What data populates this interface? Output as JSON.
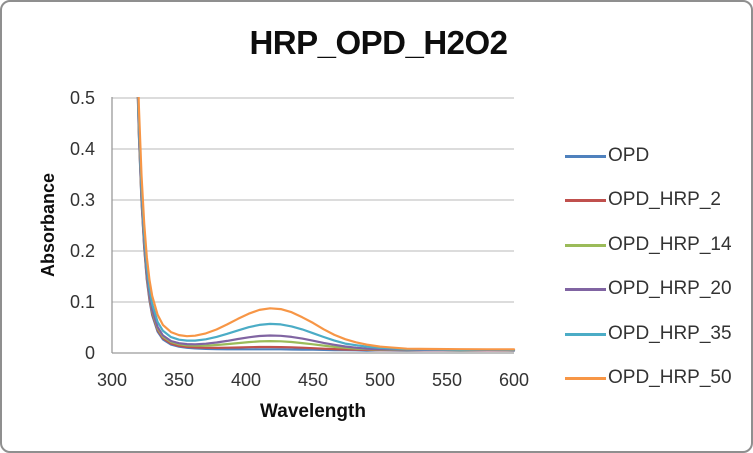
{
  "chart_data": {
    "type": "line",
    "title": "HRP_OPD_H2O2",
    "xlabel": "Wavelength",
    "ylabel": "Absorbance",
    "xlim": [
      300,
      600
    ],
    "ylim": [
      0,
      0.5
    ],
    "xticks": [
      "300",
      "350",
      "400",
      "450",
      "500",
      "550",
      "600"
    ],
    "yticks": [
      "0",
      "0.1",
      "0.2",
      "0.3",
      "0.4",
      "0.5"
    ],
    "grid": true,
    "legend_position": "right",
    "grid_color": "#c6c6c6",
    "axis_color": "#9a9a9a",
    "x": [
      316,
      318,
      320,
      322,
      324,
      326,
      328,
      330,
      334,
      338,
      344,
      350,
      356,
      362,
      370,
      378,
      386,
      394,
      402,
      410,
      418,
      426,
      434,
      442,
      450,
      458,
      466,
      474,
      482,
      490,
      500,
      520,
      540,
      560,
      580,
      600
    ],
    "series": [
      {
        "name": "OPD",
        "color": "#4F81BD",
        "values": [
          0.928,
          0.631,
          0.431,
          0.297,
          0.206,
          0.144,
          0.103,
          0.074,
          0.042,
          0.0266,
          0.0164,
          0.0123,
          0.0102,
          0.009,
          0.008,
          0.0075,
          0.0073,
          0.0072,
          0.0073,
          0.0073,
          0.0073,
          0.0072,
          0.0069,
          0.0067,
          0.0064,
          0.006,
          0.0057,
          0.0055,
          0.0053,
          0.0048,
          0.0053,
          0.0046,
          0.0052,
          0.0047,
          0.0051,
          0.0048
        ]
      },
      {
        "name": "OPD_HRP_2",
        "color": "#C0504D",
        "values": [
          0.933,
          0.636,
          0.435,
          0.301,
          0.209,
          0.147,
          0.106,
          0.077,
          0.045,
          0.029,
          0.0184,
          0.014,
          0.0119,
          0.0109,
          0.0101,
          0.01,
          0.0103,
          0.0108,
          0.0113,
          0.0117,
          0.0118,
          0.0116,
          0.0112,
          0.0103,
          0.0095,
          0.0085,
          0.0076,
          0.0069,
          0.0064,
          0.006,
          0.0055,
          0.0057,
          0.0052,
          0.0056,
          0.0051,
          0.0054
        ]
      },
      {
        "name": "OPD_HRP_14",
        "color": "#9BBB59",
        "values": [
          0.94,
          0.642,
          0.441,
          0.306,
          0.215,
          0.152,
          0.11,
          0.081,
          0.048,
          0.032,
          0.0214,
          0.017,
          0.015,
          0.0143,
          0.0144,
          0.0156,
          0.0174,
          0.0194,
          0.0213,
          0.0228,
          0.0234,
          0.023,
          0.0216,
          0.0195,
          0.0171,
          0.0145,
          0.012,
          0.0101,
          0.0086,
          0.0076,
          0.0067,
          0.0058,
          0.0062,
          0.0057,
          0.0061,
          0.0058
        ]
      },
      {
        "name": "OPD_HRP_20",
        "color": "#8064A2",
        "values": [
          0.946,
          0.647,
          0.446,
          0.31,
          0.219,
          0.156,
          0.113,
          0.084,
          0.051,
          0.0345,
          0.0236,
          0.0192,
          0.0174,
          0.017,
          0.0182,
          0.0205,
          0.0238,
          0.0274,
          0.0308,
          0.0333,
          0.0343,
          0.0338,
          0.0316,
          0.0282,
          0.0241,
          0.0199,
          0.016,
          0.0127,
          0.0103,
          0.0086,
          0.0072,
          0.0065,
          0.0057,
          0.0062,
          0.0056,
          0.0061
        ]
      },
      {
        "name": "OPD_HRP_35",
        "color": "#4BACC6",
        "values": [
          0.967,
          0.667,
          0.464,
          0.327,
          0.234,
          0.17,
          0.126,
          0.096,
          0.061,
          0.0435,
          0.0312,
          0.0261,
          0.0243,
          0.0244,
          0.0269,
          0.0316,
          0.0377,
          0.0443,
          0.0505,
          0.055,
          0.057,
          0.056,
          0.0522,
          0.0462,
          0.0389,
          0.0313,
          0.0244,
          0.0185,
          0.0152,
          0.0125,
          0.01,
          0.0075,
          0.0068,
          0.0061,
          0.0066,
          0.0063
        ]
      },
      {
        "name": "OPD_HRP_50",
        "color": "#F79646",
        "values": [
          0.995,
          0.693,
          0.487,
          0.349,
          0.254,
          0.188,
          0.143,
          0.112,
          0.075,
          0.055,
          0.041,
          0.035,
          0.033,
          0.034,
          0.0385,
          0.046,
          0.056,
          0.067,
          0.077,
          0.0845,
          0.0877,
          0.086,
          0.08,
          0.07,
          0.059,
          0.0465,
          0.0355,
          0.027,
          0.021,
          0.0165,
          0.0125,
          0.0085,
          0.0078,
          0.0074,
          0.0072,
          0.0073
        ]
      }
    ]
  }
}
